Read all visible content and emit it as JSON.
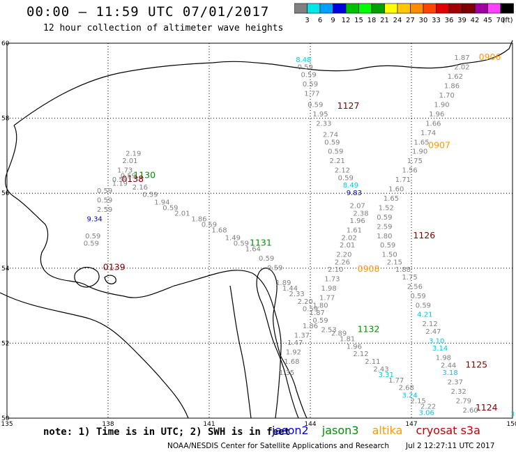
{
  "title": "00:00 – 11:59 UTC 07/01/2017",
  "subtitle": "12 hour collection of altimeter wave heights",
  "legend": {
    "unit": "(ft)",
    "ticks": [
      "3",
      "6",
      "9",
      "12",
      "15",
      "18",
      "21",
      "24",
      "27",
      "30",
      "33",
      "36",
      "39",
      "42",
      "45",
      "70"
    ],
    "colors": [
      "#808080",
      "#00e5e5",
      "#00a0ff",
      "#0000e0",
      "#00c000",
      "#00ff00",
      "#00a000",
      "#ffff00",
      "#ffc800",
      "#ff8c00",
      "#ff4500",
      "#e00000",
      "#a00000",
      "#800000",
      "#a000a0",
      "#ff40ff",
      "#000000"
    ]
  },
  "axes": {
    "lon_ticks": [
      "135",
      "138",
      "141",
      "144",
      "147",
      "150"
    ],
    "lat_ticks": [
      "60",
      "58",
      "56",
      "54",
      "52",
      "50"
    ]
  },
  "satellites": [
    {
      "name": "jason2",
      "color": "#0000e0"
    },
    {
      "name": "jason3",
      "color": "#009000"
    },
    {
      "name": "altika",
      "color": "#ff9900"
    },
    {
      "name": "cryosat s3a",
      "color": "#c00000"
    }
  ],
  "note": "note: 1) Time is in UTC; 2) SWH is in feet",
  "credit": "NOAA/NESDIS Center for Satellite Applications and Research",
  "timestamp": "Jul  2 12:27:11 UTC 2017",
  "time_labels": [
    {
      "text": "0906",
      "lon": 149.0,
      "lat": 59.55,
      "color": "#ff9900"
    },
    {
      "text": "1127",
      "lon": 144.8,
      "lat": 58.25,
      "color": "#800000"
    },
    {
      "text": "0907",
      "lon": 147.5,
      "lat": 57.2,
      "color": "#ff9900"
    },
    {
      "text": "1130",
      "lon": 138.75,
      "lat": 56.4,
      "color": "#009000"
    },
    {
      "text": "0138",
      "lon": 138.4,
      "lat": 56.3,
      "color": "#800000"
    },
    {
      "text": "1126",
      "lon": 147.05,
      "lat": 54.8,
      "color": "#800000"
    },
    {
      "text": "1131",
      "lon": 142.2,
      "lat": 54.6,
      "color": "#009000"
    },
    {
      "text": "0139",
      "lon": 137.85,
      "lat": 53.95,
      "color": "#800000"
    },
    {
      "text": "0908",
      "lon": 145.4,
      "lat": 53.9,
      "color": "#ff9900"
    },
    {
      "text": "1132",
      "lon": 145.4,
      "lat": 52.3,
      "color": "#009000"
    },
    {
      "text": "1125",
      "lon": 148.6,
      "lat": 51.35,
      "color": "#800000"
    },
    {
      "text": "1124",
      "lon": 148.9,
      "lat": 50.2,
      "color": "#800000"
    }
  ],
  "wave_points": [
    {
      "v": "8.48",
      "lon": 143.8,
      "lat": 59.5,
      "c": "#00c8e6"
    },
    {
      "v": "0.59",
      "lon": 143.85,
      "lat": 59.3,
      "c": "#808080"
    },
    {
      "v": "0.59",
      "lon": 143.95,
      "lat": 59.1,
      "c": "#808080"
    },
    {
      "v": "0.59",
      "lon": 144.0,
      "lat": 58.85,
      "c": "#808080"
    },
    {
      "v": "1.77",
      "lon": 144.05,
      "lat": 58.6,
      "c": "#808080"
    },
    {
      "v": "0.59",
      "lon": 144.15,
      "lat": 58.3,
      "c": "#808080"
    },
    {
      "v": "1.95",
      "lon": 144.3,
      "lat": 58.05,
      "c": "#808080"
    },
    {
      "v": "2.33",
      "lon": 144.4,
      "lat": 57.8,
      "c": "#808080"
    },
    {
      "v": "2.74",
      "lon": 144.6,
      "lat": 57.5,
      "c": "#808080"
    },
    {
      "v": "0.59",
      "lon": 144.65,
      "lat": 57.3,
      "c": "#808080"
    },
    {
      "v": "0.59",
      "lon": 144.75,
      "lat": 57.05,
      "c": "#808080"
    },
    {
      "v": "2.21",
      "lon": 144.8,
      "lat": 56.8,
      "c": "#808080"
    },
    {
      "v": "2.12",
      "lon": 144.95,
      "lat": 56.55,
      "c": "#808080"
    },
    {
      "v": "0.59",
      "lon": 145.05,
      "lat": 56.35,
      "c": "#808080"
    },
    {
      "v": "8.49",
      "lon": 145.2,
      "lat": 56.15,
      "c": "#00c8e6"
    },
    {
      "v": "9.83",
      "lon": 145.3,
      "lat": 55.95,
      "c": "#0000e0"
    },
    {
      "v": "2.07",
      "lon": 145.4,
      "lat": 55.6,
      "c": "#808080"
    },
    {
      "v": "2.38",
      "lon": 145.5,
      "lat": 55.4,
      "c": "#808080"
    },
    {
      "v": "1.96",
      "lon": 145.4,
      "lat": 55.2,
      "c": "#808080"
    },
    {
      "v": "1.61",
      "lon": 145.3,
      "lat": 54.95,
      "c": "#808080"
    },
    {
      "v": "2.02",
      "lon": 145.15,
      "lat": 54.75,
      "c": "#808080"
    },
    {
      "v": "2.01",
      "lon": 145.1,
      "lat": 54.55,
      "c": "#808080"
    },
    {
      "v": "2.20",
      "lon": 145.0,
      "lat": 54.3,
      "c": "#808080"
    },
    {
      "v": "2.26",
      "lon": 144.95,
      "lat": 54.1,
      "c": "#808080"
    },
    {
      "v": "2.10",
      "lon": 144.75,
      "lat": 53.9,
      "c": "#808080"
    },
    {
      "v": "1.73",
      "lon": 144.65,
      "lat": 53.65,
      "c": "#808080"
    },
    {
      "v": "1.98",
      "lon": 144.55,
      "lat": 53.4,
      "c": "#808080"
    },
    {
      "v": "1.77",
      "lon": 144.5,
      "lat": 53.15,
      "c": "#808080"
    },
    {
      "v": "1.80",
      "lon": 144.3,
      "lat": 52.95,
      "c": "#808080"
    },
    {
      "v": "1.87",
      "lon": 144.2,
      "lat": 52.75,
      "c": "#808080"
    },
    {
      "v": "1.86",
      "lon": 144.0,
      "lat": 52.4,
      "c": "#808080"
    },
    {
      "v": "1.37",
      "lon": 143.75,
      "lat": 52.15,
      "c": "#808080"
    },
    {
      "v": "1.47",
      "lon": 143.55,
      "lat": 51.95,
      "c": "#808080"
    },
    {
      "v": "1.92",
      "lon": 143.5,
      "lat": 51.7,
      "c": "#808080"
    },
    {
      "v": "1.68",
      "lon": 143.45,
      "lat": 51.45,
      "c": "#808080"
    },
    {
      "v": "1.35",
      "lon": 143.3,
      "lat": 51.15,
      "c": "#808080"
    },
    {
      "v": "1.87",
      "lon": 148.5,
      "lat": 59.55,
      "c": "#808080"
    },
    {
      "v": "2.02",
      "lon": 148.5,
      "lat": 59.3,
      "c": "#808080"
    },
    {
      "v": "1.62",
      "lon": 148.3,
      "lat": 59.05,
      "c": "#808080"
    },
    {
      "v": "1.86",
      "lon": 148.2,
      "lat": 58.8,
      "c": "#808080"
    },
    {
      "v": "1.70",
      "lon": 148.05,
      "lat": 58.55,
      "c": "#808080"
    },
    {
      "v": "1.90",
      "lon": 147.9,
      "lat": 58.3,
      "c": "#808080"
    },
    {
      "v": "1.96",
      "lon": 147.75,
      "lat": 58.05,
      "c": "#808080"
    },
    {
      "v": "1.66",
      "lon": 147.65,
      "lat": 57.8,
      "c": "#808080"
    },
    {
      "v": "1.74",
      "lon": 147.5,
      "lat": 57.55,
      "c": "#808080"
    },
    {
      "v": "1.65",
      "lon": 147.3,
      "lat": 57.3,
      "c": "#808080"
    },
    {
      "v": "1.90",
      "lon": 147.25,
      "lat": 57.05,
      "c": "#808080"
    },
    {
      "v": "1.75",
      "lon": 147.1,
      "lat": 56.8,
      "c": "#808080"
    },
    {
      "v": "1.56",
      "lon": 146.95,
      "lat": 56.55,
      "c": "#808080"
    },
    {
      "v": "1.71",
      "lon": 146.75,
      "lat": 56.3,
      "c": "#808080"
    },
    {
      "v": "1.60",
      "lon": 146.55,
      "lat": 56.05,
      "c": "#808080"
    },
    {
      "v": "1.65",
      "lon": 146.4,
      "lat": 55.8,
      "c": "#808080"
    },
    {
      "v": "1.52",
      "lon": 146.25,
      "lat": 55.55,
      "c": "#808080"
    },
    {
      "v": "0.59",
      "lon": 146.2,
      "lat": 55.3,
      "c": "#808080"
    },
    {
      "v": "2.59",
      "lon": 146.2,
      "lat": 55.05,
      "c": "#808080"
    },
    {
      "v": "1.80",
      "lon": 146.2,
      "lat": 54.8,
      "c": "#808080"
    },
    {
      "v": "0.59",
      "lon": 146.3,
      "lat": 54.55,
      "c": "#808080"
    },
    {
      "v": "1.50",
      "lon": 146.35,
      "lat": 54.3,
      "c": "#808080"
    },
    {
      "v": "2.15",
      "lon": 146.5,
      "lat": 54.1,
      "c": "#808080"
    },
    {
      "v": "1.88",
      "lon": 146.75,
      "lat": 53.9,
      "c": "#808080"
    },
    {
      "v": "1.75",
      "lon": 146.95,
      "lat": 53.7,
      "c": "#808080"
    },
    {
      "v": "2.56",
      "lon": 147.1,
      "lat": 53.45,
      "c": "#808080"
    },
    {
      "v": "0.59",
      "lon": 147.2,
      "lat": 53.2,
      "c": "#808080"
    },
    {
      "v": "0.59",
      "lon": 147.35,
      "lat": 52.95,
      "c": "#808080"
    },
    {
      "v": "4.21",
      "lon": 147.4,
      "lat": 52.7,
      "c": "#00c8e6"
    },
    {
      "v": "2.12",
      "lon": 147.55,
      "lat": 52.45,
      "c": "#808080"
    },
    {
      "v": "2.47",
      "lon": 147.65,
      "lat": 52.25,
      "c": "#808080"
    },
    {
      "v": "3.10",
      "lon": 147.75,
      "lat": 52.0,
      "c": "#00c8e6"
    },
    {
      "v": "3.14",
      "lon": 147.85,
      "lat": 51.8,
      "c": "#00c8e6"
    },
    {
      "v": "1.98",
      "lon": 147.95,
      "lat": 51.55,
      "c": "#808080"
    },
    {
      "v": "2.44",
      "lon": 148.1,
      "lat": 51.35,
      "c": "#808080"
    },
    {
      "v": "3.18",
      "lon": 148.15,
      "lat": 51.15,
      "c": "#00c8e6"
    },
    {
      "v": "2.37",
      "lon": 148.3,
      "lat": 50.9,
      "c": "#808080"
    },
    {
      "v": "2.32",
      "lon": 148.4,
      "lat": 50.65,
      "c": "#808080"
    },
    {
      "v": "2.79",
      "lon": 148.55,
      "lat": 50.4,
      "c": "#808080"
    },
    {
      "v": "2.60",
      "lon": 148.75,
      "lat": 50.15,
      "c": "#808080"
    },
    {
      "v": "3",
      "lon": 150.0,
      "lat": 50.05,
      "c": "#00c8e6"
    },
    {
      "v": "2.19",
      "lon": 138.75,
      "lat": 57.0,
      "c": "#808080"
    },
    {
      "v": "2.01",
      "lon": 138.65,
      "lat": 56.8,
      "c": "#808080"
    },
    {
      "v": "1.73",
      "lon": 138.5,
      "lat": 56.55,
      "c": "#808080"
    },
    {
      "v": "0.59",
      "lon": 138.6,
      "lat": 56.4,
      "c": "#808080"
    },
    {
      "v": "0.59",
      "lon": 138.35,
      "lat": 56.3,
      "c": "#808080"
    },
    {
      "v": "1.19",
      "lon": 138.35,
      "lat": 56.2,
      "c": "#808080"
    },
    {
      "v": "2.16",
      "lon": 138.95,
      "lat": 56.1,
      "c": "#808080"
    },
    {
      "v": "0.59",
      "lon": 137.9,
      "lat": 56.0,
      "c": "#808080"
    },
    {
      "v": "0.59",
      "lon": 139.25,
      "lat": 55.9,
      "c": "#808080"
    },
    {
      "v": "0.59",
      "lon": 137.9,
      "lat": 55.75,
      "c": "#808080"
    },
    {
      "v": "1.94",
      "lon": 139.6,
      "lat": 55.7,
      "c": "#808080"
    },
    {
      "v": "0.59",
      "lon": 139.85,
      "lat": 55.55,
      "c": "#808080"
    },
    {
      "v": "2.59",
      "lon": 137.9,
      "lat": 55.5,
      "c": "#808080"
    },
    {
      "v": "2.01",
      "lon": 140.2,
      "lat": 55.4,
      "c": "#808080"
    },
    {
      "v": "9.34",
      "lon": 137.6,
      "lat": 55.25,
      "c": "#0000e0"
    },
    {
      "v": "1.86",
      "lon": 140.7,
      "lat": 55.25,
      "c": "#808080"
    },
    {
      "v": "0.59",
      "lon": 141.0,
      "lat": 55.1,
      "c": "#808080"
    },
    {
      "v": "1.68",
      "lon": 141.3,
      "lat": 54.95,
      "c": "#808080"
    },
    {
      "v": "0.59",
      "lon": 137.55,
      "lat": 54.8,
      "c": "#808080"
    },
    {
      "v": "1.49",
      "lon": 141.7,
      "lat": 54.75,
      "c": "#808080"
    },
    {
      "v": "0.59",
      "lon": 137.5,
      "lat": 54.6,
      "c": "#808080"
    },
    {
      "v": "0.59",
      "lon": 141.95,
      "lat": 54.6,
      "c": "#808080"
    },
    {
      "v": "1.64",
      "lon": 142.3,
      "lat": 54.45,
      "c": "#808080"
    },
    {
      "v": "0.59",
      "lon": 142.7,
      "lat": 54.2,
      "c": "#808080"
    },
    {
      "v": "0.59",
      "lon": 142.95,
      "lat": 53.95,
      "c": "#808080"
    },
    {
      "v": "1.89",
      "lon": 143.2,
      "lat": 53.55,
      "c": "#808080"
    },
    {
      "v": "1.44",
      "lon": 143.4,
      "lat": 53.4,
      "c": "#808080"
    },
    {
      "v": "2.33",
      "lon": 143.6,
      "lat": 53.25,
      "c": "#808080"
    },
    {
      "v": "2.20",
      "lon": 143.85,
      "lat": 53.05,
      "c": "#808080"
    },
    {
      "v": "0.59",
      "lon": 144.0,
      "lat": 52.85,
      "c": "#808080"
    },
    {
      "v": "0.59",
      "lon": 144.3,
      "lat": 52.55,
      "c": "#808080"
    },
    {
      "v": "2.53",
      "lon": 144.55,
      "lat": 52.3,
      "c": "#808080"
    },
    {
      "v": "2.89",
      "lon": 144.85,
      "lat": 52.2,
      "c": "#808080"
    },
    {
      "v": "1.81",
      "lon": 145.1,
      "lat": 52.05,
      "c": "#808080"
    },
    {
      "v": "1.96",
      "lon": 145.3,
      "lat": 51.85,
      "c": "#808080"
    },
    {
      "v": "2.12",
      "lon": 145.5,
      "lat": 51.65,
      "c": "#808080"
    },
    {
      "v": "2.11",
      "lon": 145.85,
      "lat": 51.45,
      "c": "#808080"
    },
    {
      "v": "2.43",
      "lon": 146.1,
      "lat": 51.25,
      "c": "#808080"
    },
    {
      "v": "3.31",
      "lon": 146.25,
      "lat": 51.1,
      "c": "#00c8e6"
    },
    {
      "v": "1.77",
      "lon": 146.55,
      "lat": 50.95,
      "c": "#808080"
    },
    {
      "v": "2.68",
      "lon": 146.85,
      "lat": 50.75,
      "c": "#808080"
    },
    {
      "v": "3.24",
      "lon": 146.95,
      "lat": 50.55,
      "c": "#00c8e6"
    },
    {
      "v": "2.15",
      "lon": 147.2,
      "lat": 50.4,
      "c": "#808080"
    },
    {
      "v": "2.22",
      "lon": 147.5,
      "lat": 50.25,
      "c": "#808080"
    },
    {
      "v": "3.06",
      "lon": 147.45,
      "lat": 50.08,
      "c": "#00c8e6"
    }
  ]
}
